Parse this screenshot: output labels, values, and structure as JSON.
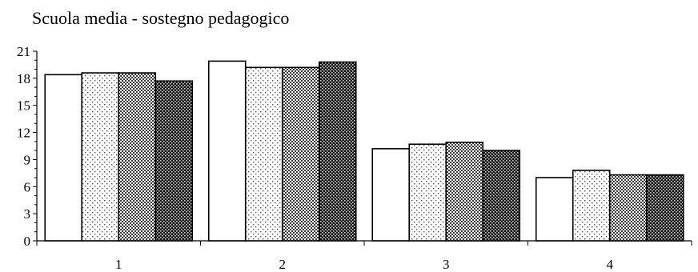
{
  "chart_data": {
    "type": "bar",
    "title": "Scuola media - sostegno pedagogico",
    "xlabel": "",
    "ylabel": "",
    "categories": [
      "1",
      "2",
      "3",
      "4"
    ],
    "ylim": [
      0,
      21
    ],
    "yticks": [
      0,
      3,
      6,
      9,
      12,
      15,
      18,
      21
    ],
    "grid": false,
    "legend": "none",
    "series": [
      {
        "values": [
          18.4,
          19.9,
          10.2,
          7.0
        ],
        "pattern": "white"
      },
      {
        "values": [
          18.6,
          19.2,
          10.7,
          7.8
        ],
        "pattern": "dots"
      },
      {
        "values": [
          18.6,
          19.2,
          10.9,
          7.3
        ],
        "pattern": "checker"
      },
      {
        "values": [
          17.7,
          19.8,
          10.0,
          7.3
        ],
        "pattern": "dark-checker"
      }
    ]
  }
}
